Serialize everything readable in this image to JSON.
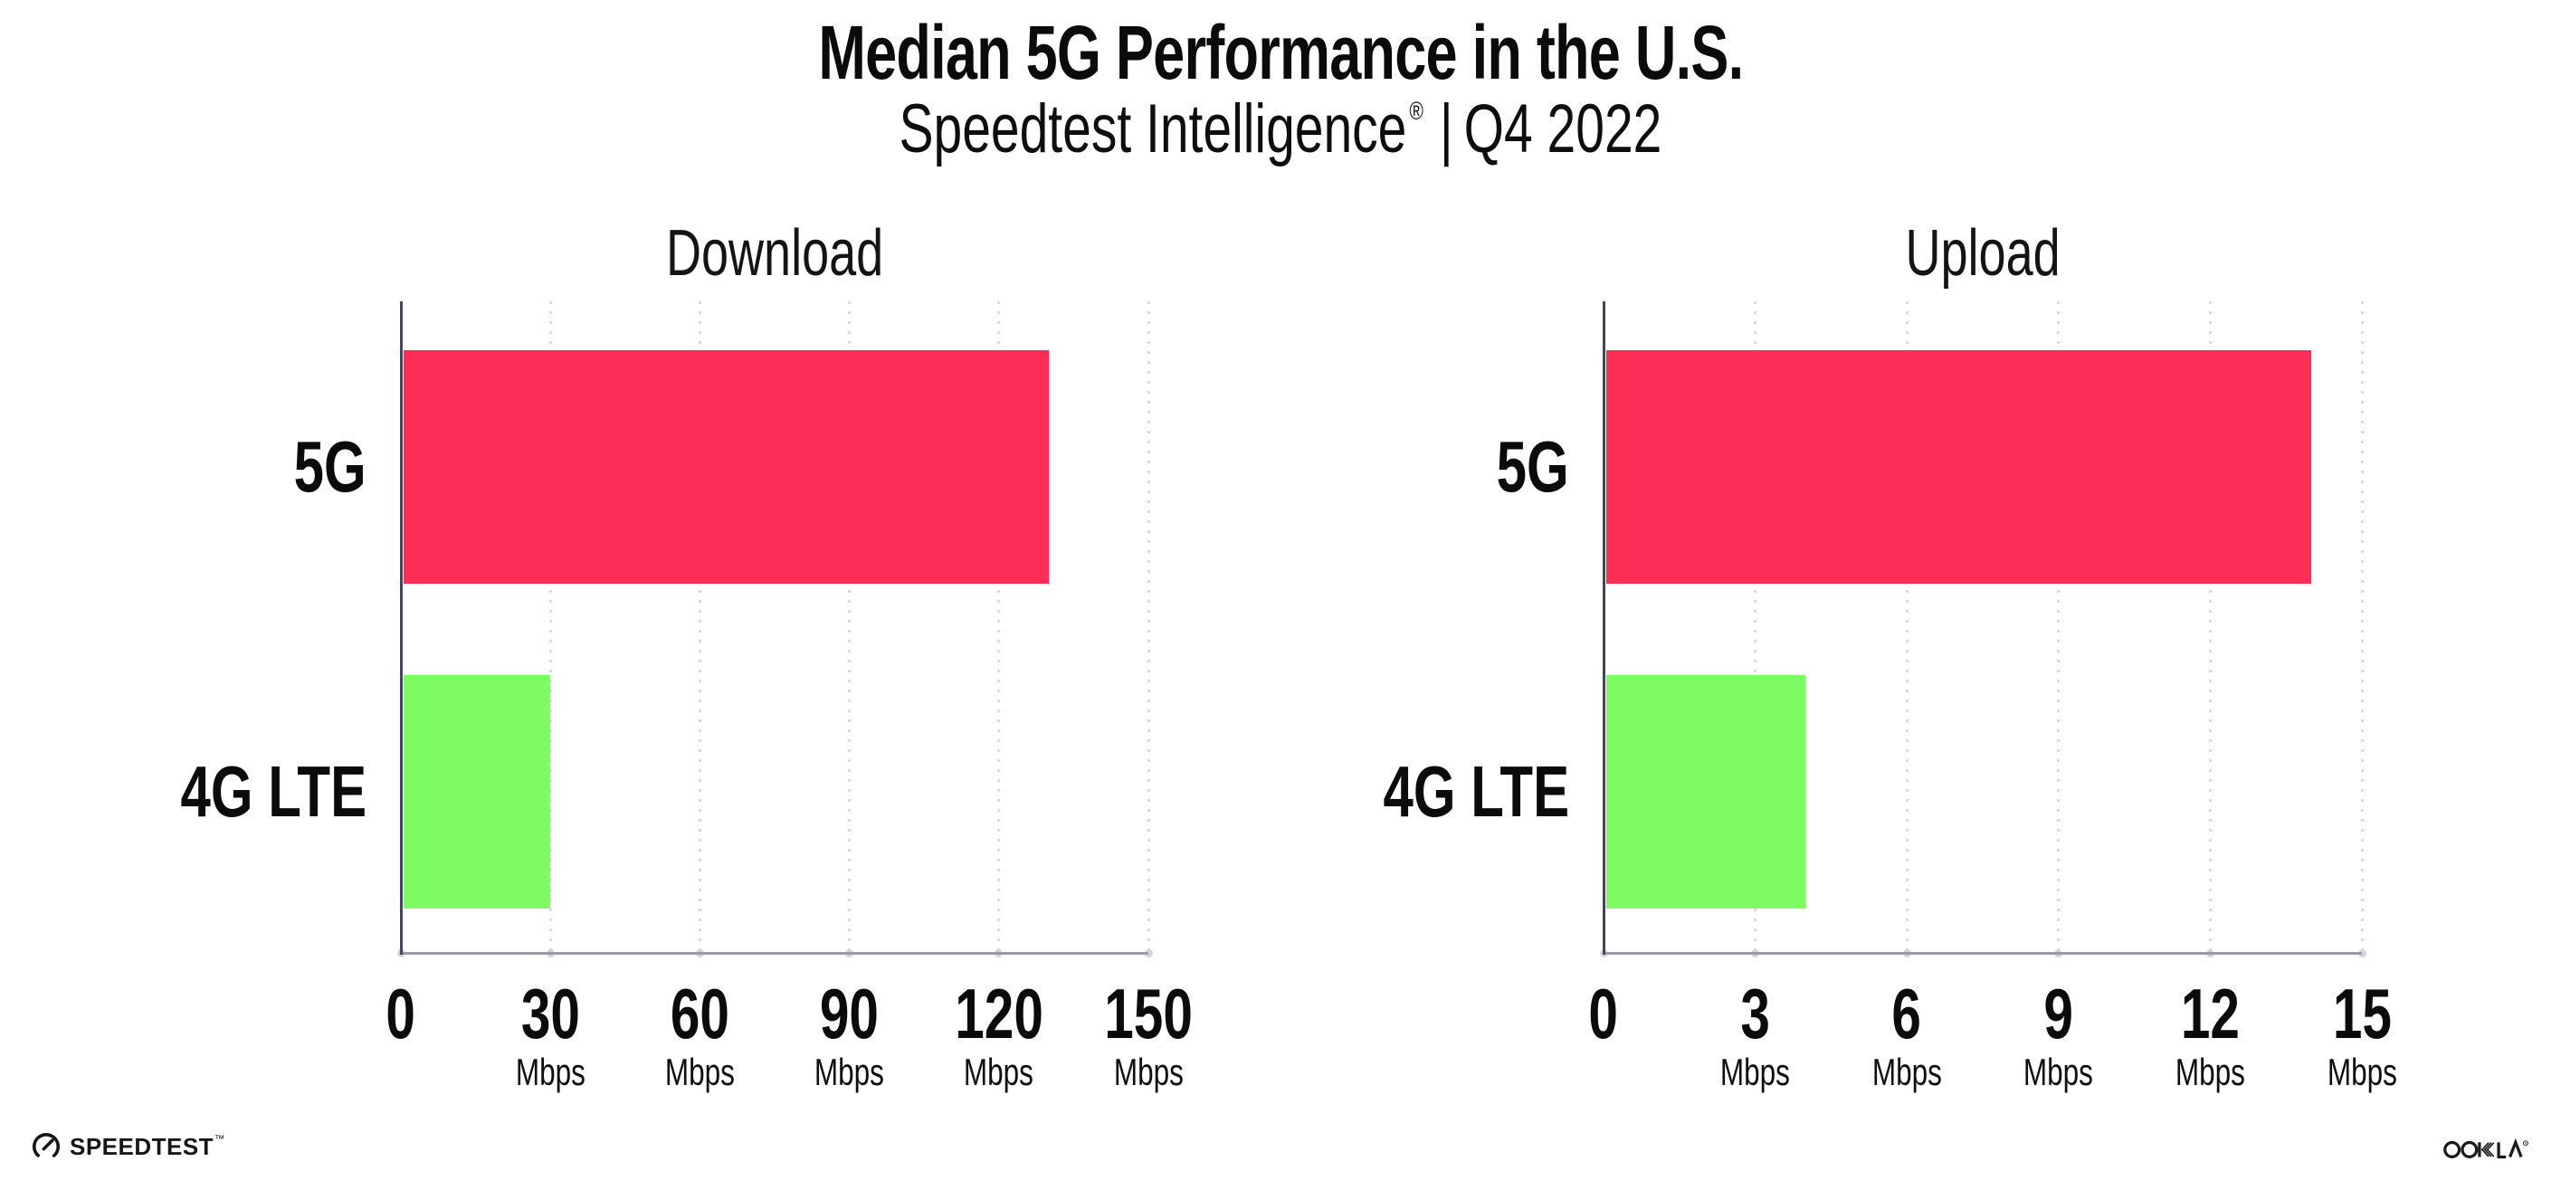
{
  "header": {
    "title": "Median 5G Performance in the U.S.",
    "subtitle_brand": "Speedtest Intelligence",
    "subtitle_reg": "®",
    "subtitle_separator": "|",
    "subtitle_period": "Q4 2022"
  },
  "chart_data": [
    {
      "type": "bar",
      "orientation": "horizontal",
      "title": "Download",
      "categories": [
        "5G",
        "4G LTE"
      ],
      "values": [
        130,
        30
      ],
      "tick_unit": "Mbps",
      "bar_colors": [
        "#FC2E56",
        "#7EFB62"
      ],
      "xticks": [
        0,
        30,
        60,
        90,
        120,
        150
      ],
      "xlim": [
        0,
        150
      ],
      "grid": "vertical-dotted",
      "legend": "none"
    },
    {
      "type": "bar",
      "orientation": "horizontal",
      "title": "Upload",
      "categories": [
        "5G",
        "4G LTE"
      ],
      "values": [
        14,
        4
      ],
      "tick_unit": "Mbps",
      "bar_colors": [
        "#FC2E56",
        "#7EFB62"
      ],
      "xticks": [
        0,
        3,
        6,
        9,
        12,
        15
      ],
      "xlim": [
        0,
        15
      ],
      "grid": "vertical-dotted",
      "legend": "none"
    }
  ],
  "footer": {
    "speedtest_logo_text": "SPEEDTEST",
    "speedtest_trademark": "™",
    "ookla_logo_text": "OOKLA",
    "ookla_registered": "®"
  },
  "colors": {
    "background": "#FFFFFF",
    "bar_5g": "#FC2E56",
    "bar_4g_lte": "#7EFB62",
    "gridline": "#D9DAE3",
    "axis_y": "#44445C",
    "axis_x": "#9B9BA6",
    "text": "#0B0B0C"
  }
}
